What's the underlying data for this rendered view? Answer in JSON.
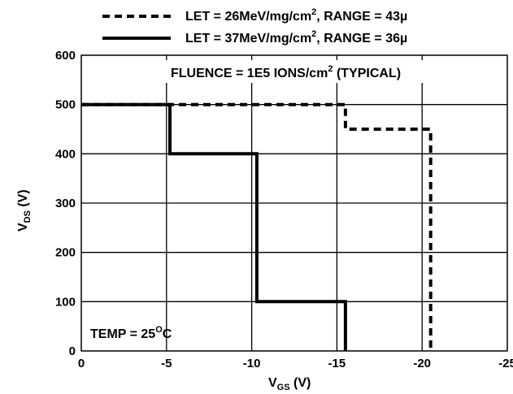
{
  "chart_data": {
    "type": "line",
    "xlabel": {
      "base": "V",
      "sub": "GS",
      "unit": " (V)"
    },
    "ylabel": {
      "base": "V",
      "sub": "DS",
      "unit": " (V)"
    },
    "xlim": [
      0,
      -25
    ],
    "ylim": [
      0,
      600
    ],
    "x_ticks": [
      "0",
      "-5",
      "-10",
      "-15",
      "-20",
      "-25"
    ],
    "y_ticks": [
      "0",
      "100",
      "200",
      "300",
      "400",
      "500",
      "600"
    ],
    "grid": true,
    "legend_position": "top",
    "annotations": {
      "fluence": {
        "pre": "FLUENCE = 1E5 IONS/cm",
        "sup": "2",
        "post": " (TYPICAL)"
      },
      "temp": {
        "pre": "TEMP = 25",
        "sup": "O",
        "post": "C"
      }
    },
    "series": [
      {
        "name": {
          "pre": "LET = 26MeV/mg/cm",
          "sup": "2",
          "post": ", RANGE = 43µ"
        },
        "style": "dashed",
        "x": [
          0,
          -15.5,
          -15.5,
          -20.5,
          -20.5
        ],
        "y": [
          500,
          500,
          450,
          450,
          0
        ]
      },
      {
        "name": {
          "pre": "LET = 37MeV/mg/cm",
          "sup": "2",
          "post": ", RANGE = 36µ"
        },
        "style": "solid",
        "x": [
          0,
          -5.2,
          -5.2,
          -10.3,
          -10.3,
          -15.5,
          -15.5
        ],
        "y": [
          500,
          500,
          400,
          400,
          100,
          100,
          0
        ]
      }
    ]
  }
}
